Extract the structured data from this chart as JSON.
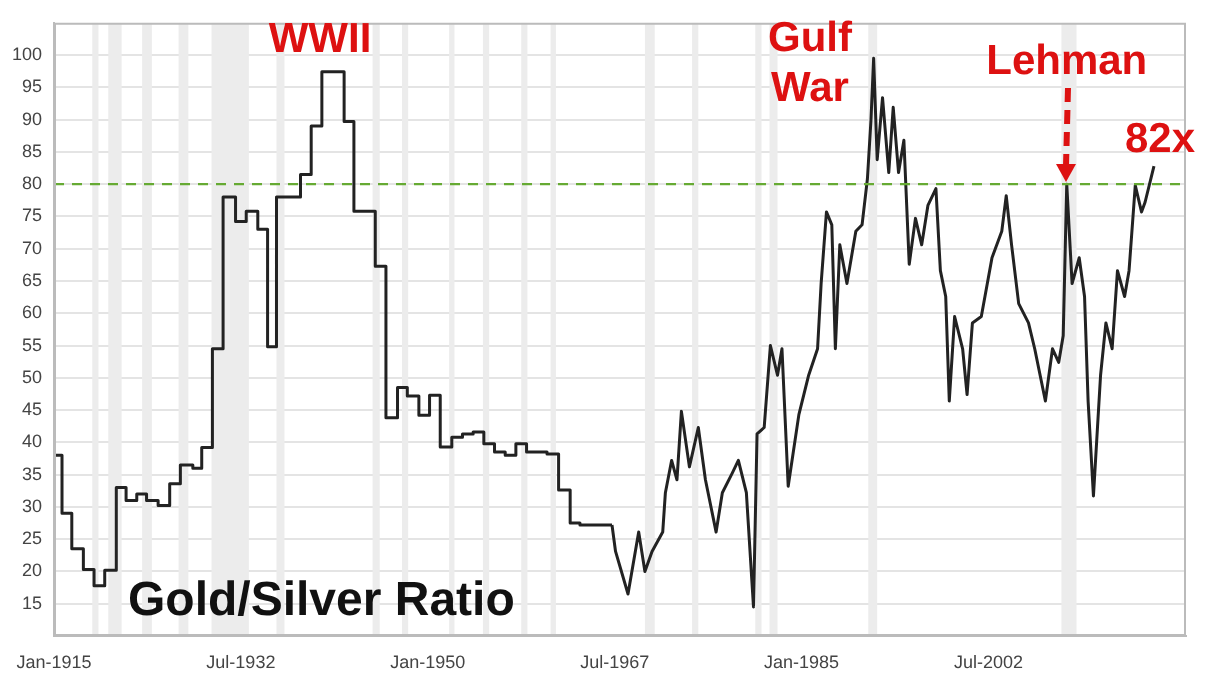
{
  "chart_data": {
    "type": "line",
    "title": "Gold/Silver Ratio",
    "series": [
      {
        "type": "step",
        "color": "#222222",
        "x": [
          "1915-01",
          "1915-10",
          "1916-09",
          "1917-10",
          "1918-10",
          "1919-10",
          "1920-11",
          "1921-10",
          "1922-10",
          "1923-09",
          "1924-10",
          "1925-11",
          "1926-11",
          "1928-01",
          "1928-11",
          "1929-11",
          "1930-11",
          "1932-01",
          "1933-01",
          "1934-02",
          "1935-01",
          "1935-11",
          "1938-02",
          "1939-02",
          "1940-02",
          "1942-03",
          "1943-02",
          "1945-02",
          "1946-02",
          "1947-03",
          "1948-02",
          "1949-03",
          "1950-03",
          "1951-03",
          "1952-04",
          "1953-04",
          "1954-04",
          "1955-04",
          "1956-04",
          "1957-04",
          "1958-04",
          "1959-04",
          "1961-03",
          "1962-04",
          "1963-05",
          "1964-04",
          "1967-04"
        ],
        "values": [
          38,
          29,
          23.5,
          20.3,
          17.8,
          20.2,
          33,
          31,
          32,
          31,
          30.2,
          33.6,
          36.5,
          36,
          39.2,
          54.5,
          78,
          74.2,
          75.8,
          73,
          54.8,
          78,
          81.5,
          89,
          97.4,
          89.7,
          75.8,
          67.3,
          43.8,
          48.5,
          47.2,
          44.2,
          47.3,
          39.3,
          40.8,
          41.3,
          41.6,
          39.8,
          38.5,
          38,
          39.8,
          38.5,
          38.2,
          32.6,
          27.5,
          27.2,
          27.2
        ]
      },
      {
        "color": "#222222",
        "x": [
          "1967-04",
          "1967-08",
          "1968-10",
          "1969-10",
          "1970-05",
          "1971-01",
          "1972-01",
          "1972-04",
          "1972-11",
          "1973-05",
          "1973-10",
          "1974-07",
          "1975-05",
          "1976-01",
          "1977-01",
          "1977-08",
          "1978-07",
          "1979-02",
          "1979-11",
          "1980-07",
          "1980-11",
          "1981-07",
          "1982-02",
          "1982-10",
          "1983-03",
          "1983-10",
          "1984-10",
          "1985-09",
          "1986-07",
          "1986-11",
          "1987-05",
          "1987-11",
          "1988-03",
          "1988-08",
          "1989-04",
          "1990-02",
          "1990-09",
          "1991-03",
          "1991-07",
          "1991-10",
          "1992-02",
          "1992-08",
          "1993-03",
          "1993-08",
          "1994-02",
          "1994-08",
          "1995-02",
          "1995-09",
          "1996-04",
          "1996-11",
          "1997-08",
          "1998-01",
          "1998-07",
          "1998-11",
          "1999-05",
          "2000-02",
          "2000-07",
          "2001-01",
          "2001-11",
          "2002-11",
          "2003-10",
          "2004-03",
          "2004-09",
          "2005-05",
          "2006-04",
          "2006-11",
          "2007-11",
          "2008-07",
          "2009-02",
          "2009-07",
          "2009-11",
          "2010-05",
          "2011-01",
          "2011-07",
          "2011-11",
          "2012-05",
          "2013-01",
          "2013-07",
          "2014-02",
          "2014-08",
          "2015-04",
          "2015-09",
          "2016-04",
          "2016-11",
          "2017-03",
          "2018-01"
        ],
        "values": [
          27.2,
          23.1,
          16.5,
          26.1,
          20.0,
          23.1,
          26.1,
          32.2,
          37.2,
          34.2,
          44.8,
          36.2,
          42.3,
          34.2,
          26.1,
          32.2,
          35.2,
          37.2,
          32.2,
          14.5,
          41.3,
          42.3,
          55.0,
          50.4,
          54.5,
          33.2,
          44.3,
          50.4,
          54.5,
          64.6,
          75.7,
          73.7,
          54.5,
          70.6,
          64.6,
          72.7,
          73.7,
          80.8,
          89.9,
          99.5,
          83.8,
          93.4,
          81.8,
          91.9,
          81.8,
          86.8,
          67.6,
          74.7,
          70.6,
          76.7,
          79.3,
          66.6,
          62.6,
          46.4,
          59.5,
          54.5,
          47.4,
          58.5,
          59.5,
          68.6,
          72.7,
          78.2,
          70.6,
          61.5,
          58.5,
          54.5,
          46.4,
          54.5,
          52.4,
          56.5,
          80.0,
          64.6,
          68.6,
          62.6,
          46.4,
          31.7,
          50.4,
          58.5,
          54.5,
          66.6,
          62.6,
          66.6,
          79.8,
          75.7,
          77.2,
          82.8
        ]
      }
    ],
    "xlim": [
      "1915-01",
      "2021-01"
    ],
    "xticks": [
      {
        "value": "1915-01",
        "label": "Jan-1915"
      },
      {
        "value": "1932-07",
        "label": "Jul-1932"
      },
      {
        "value": "1950-01",
        "label": "Jan-1950"
      },
      {
        "value": "1967-07",
        "label": "Jul-1967"
      },
      {
        "value": "1985-01",
        "label": "Jan-1985"
      },
      {
        "value": "2002-07",
        "label": "Jul-2002"
      }
    ],
    "ylim": [
      10,
      105
    ],
    "yticks": [
      15,
      20,
      25,
      30,
      35,
      40,
      45,
      50,
      55,
      60,
      65,
      70,
      75,
      80,
      85,
      90,
      95,
      100
    ],
    "grid": "y",
    "legend": false,
    "marker": "none",
    "line_style": "solid",
    "ref_lines": [
      {
        "axis": "y",
        "value": 80,
        "color": "#66aa33",
        "line_style": "dashed"
      }
    ],
    "bands": [
      {
        "axis": "x",
        "from": "1918-08",
        "to": "1919-03",
        "color": "#ececec"
      },
      {
        "axis": "x",
        "from": "1920-02",
        "to": "1921-05",
        "color": "#ececec"
      },
      {
        "axis": "x",
        "from": "1923-04",
        "to": "1924-03",
        "color": "#ececec"
      },
      {
        "axis": "x",
        "from": "1926-09",
        "to": "1927-08",
        "color": "#ececec"
      },
      {
        "axis": "x",
        "from": "1929-10",
        "to": "1933-04",
        "color": "#ececec"
      },
      {
        "axis": "x",
        "from": "1935-11",
        "to": "1936-08",
        "color": "#ececec"
      },
      {
        "axis": "x",
        "from": "1944-11",
        "to": "1945-07",
        "color": "#ececec"
      },
      {
        "axis": "x",
        "from": "1947-08",
        "to": "1948-03",
        "color": "#ececec"
      },
      {
        "axis": "x",
        "from": "1952-01",
        "to": "1952-07",
        "color": "#ececec"
      },
      {
        "axis": "x",
        "from": "1955-03",
        "to": "1955-10",
        "color": "#ececec"
      },
      {
        "axis": "x",
        "from": "1958-10",
        "to": "1959-05",
        "color": "#ececec"
      },
      {
        "axis": "x",
        "from": "1961-07",
        "to": "1962-01",
        "color": "#ececec"
      },
      {
        "axis": "x",
        "from": "1970-05",
        "to": "1971-04",
        "color": "#ececec"
      },
      {
        "axis": "x",
        "from": "1974-10",
        "to": "1975-05",
        "color": "#ececec"
      },
      {
        "axis": "x",
        "from": "1980-09",
        "to": "1981-04",
        "color": "#ececec"
      },
      {
        "axis": "x",
        "from": "1982-01",
        "to": "1982-10",
        "color": "#ececec"
      },
      {
        "axis": "x",
        "from": "1991-04",
        "to": "1992-02",
        "color": "#ececec"
      },
      {
        "axis": "x",
        "from": "2009-05",
        "to": "2010-10",
        "color": "#ececec"
      }
    ],
    "annotations": [
      "WWII",
      "Gulf War",
      {
        "text": "Lehman",
        "x": "2009-11",
        "y": 80
      },
      "82x"
    ]
  }
}
